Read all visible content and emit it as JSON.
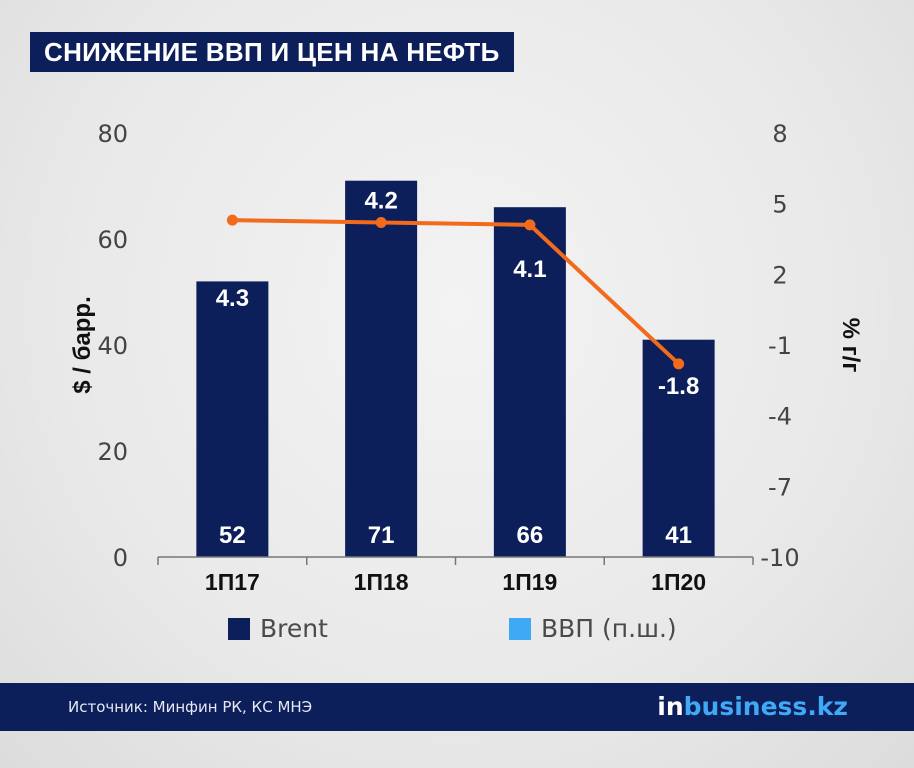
{
  "title": "СНИЖЕНИЕ ВВП И ЦЕН НА НЕФТЬ",
  "chart_data": {
    "type": "bar",
    "categories": [
      "1П17",
      "1П18",
      "1П19",
      "1П20"
    ],
    "series": [
      {
        "name": "Brent",
        "type": "bar",
        "axis": "left",
        "values": [
          52,
          71,
          66,
          41
        ],
        "color": "#0d1f5a"
      },
      {
        "name": "ВВП (п.ш.)",
        "type": "line",
        "axis": "right",
        "values": [
          4.3,
          4.2,
          4.1,
          -1.8
        ],
        "color": "#f26a1b",
        "legend_color": "#3fa9f5"
      }
    ],
    "ylabel": "$ / барр.",
    "ylabel_right": "% г/г",
    "ylim": [
      0,
      80
    ],
    "ylim_right": [
      -10,
      8
    ],
    "yticks": [
      "0",
      "20",
      "40",
      "60",
      "80"
    ],
    "yticks_right": [
      "-10",
      "-7",
      "-4",
      "-1",
      "2",
      "5",
      "8"
    ],
    "bar_labels": [
      "52",
      "71",
      "66",
      "41"
    ],
    "line_labels": [
      "4.3",
      "4.2",
      "4.1",
      "-1.8"
    ],
    "legend_position": "bottom",
    "grid": false
  },
  "footer": {
    "source": "Источник: Минфин РК, КС МНЭ",
    "logo_in": "in",
    "logo_rest": "business.kz"
  },
  "colors": {
    "navy": "#0d1f5a",
    "orange": "#f26a1b",
    "light_blue": "#3fa9f5"
  }
}
